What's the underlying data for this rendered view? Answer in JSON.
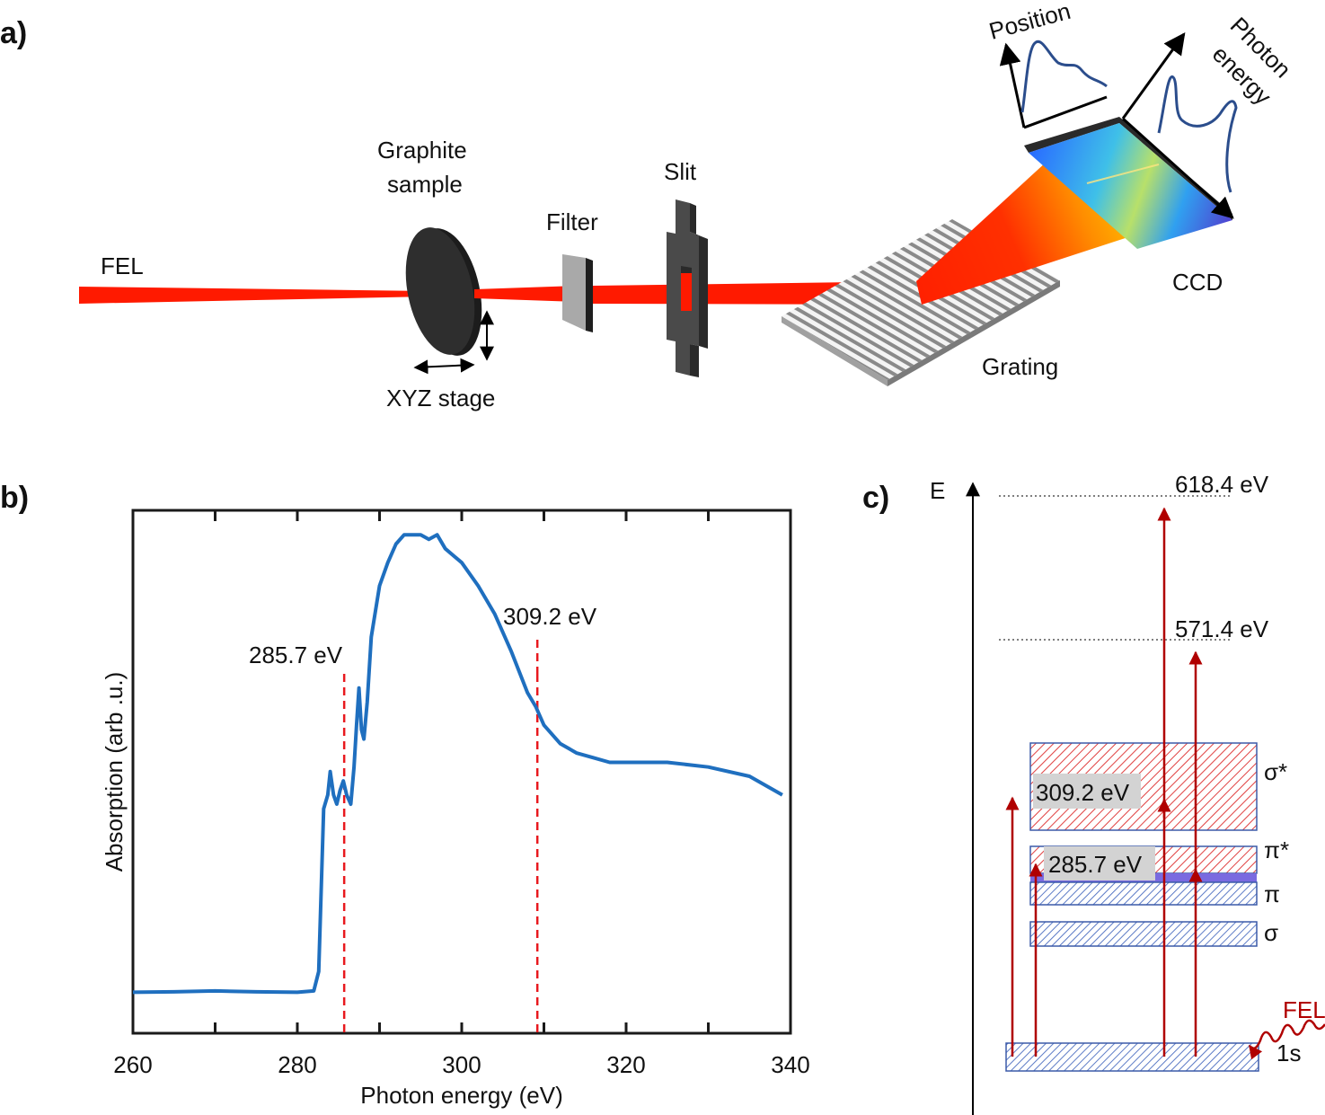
{
  "panels": {
    "a": {
      "panel_label": "a)",
      "labels": {
        "fel": "FEL",
        "sample": [
          "Graphite",
          "sample"
        ],
        "stage": "XYZ stage",
        "filter": "Filter",
        "slit": "Slit",
        "grating": "Grating",
        "ccd": "CCD",
        "position": "Position",
        "photon_energy": [
          "Photon",
          "energy"
        ]
      },
      "colors": {
        "beam": "#ff1a00",
        "trace": "#2b4d8c"
      }
    },
    "b": {
      "panel_label": "b)"
    },
    "c": {
      "panel_label": "c)",
      "axis_label": "E",
      "levels": {
        "high": "618.4 eV",
        "mid": "571.4 eV"
      },
      "bands": [
        "σ*",
        "π*",
        "π",
        "σ",
        "1s"
      ],
      "transitions": [
        "309.2 eV",
        "285.7 eV"
      ],
      "fel": "FEL",
      "colors": {
        "band_edge": "#3b5aa8",
        "arrow": "#b00000"
      }
    }
  },
  "chart_data": {
    "type": "line",
    "xlabel": "Photon energy (eV)",
    "ylabel": "Absorption (arb .u.)",
    "xlim": [
      260,
      340
    ],
    "ylim": [
      0,
      1
    ],
    "x_ticks": [
      260,
      280,
      300,
      320,
      340
    ],
    "annotations": [
      "285.7 eV",
      "309.2 eV"
    ],
    "markers": [
      285.7,
      309.2
    ],
    "series": [
      {
        "color": "#1f6fbf",
        "x": [
          260,
          265,
          270,
          275,
          280,
          282,
          282.6,
          283.2,
          283.7,
          284.0,
          284.4,
          284.8,
          285.2,
          285.6,
          286.0,
          286.5,
          286.9,
          287.2,
          287.5,
          287.8,
          288.1,
          288.5,
          289.0,
          290.0,
          291.0,
          292.0,
          293.0,
          294.0,
          295.0,
          296.0,
          297.0,
          298.0,
          300.0,
          302.0,
          304.0,
          306.0,
          308.0,
          309.0,
          310.0,
          312.0,
          314.0,
          316.0,
          318.0,
          320.0,
          325.0,
          330.0,
          335.0,
          339.0
        ],
        "y": [
          0.005,
          0.006,
          0.008,
          0.006,
          0.005,
          0.008,
          0.05,
          0.4,
          0.43,
          0.48,
          0.43,
          0.41,
          0.44,
          0.46,
          0.43,
          0.41,
          0.49,
          0.58,
          0.66,
          0.57,
          0.55,
          0.63,
          0.77,
          0.88,
          0.93,
          0.97,
          0.99,
          0.99,
          0.99,
          0.98,
          0.99,
          0.96,
          0.93,
          0.88,
          0.82,
          0.74,
          0.65,
          0.62,
          0.58,
          0.54,
          0.52,
          0.51,
          0.5,
          0.5,
          0.5,
          0.49,
          0.47,
          0.43
        ]
      }
    ]
  }
}
